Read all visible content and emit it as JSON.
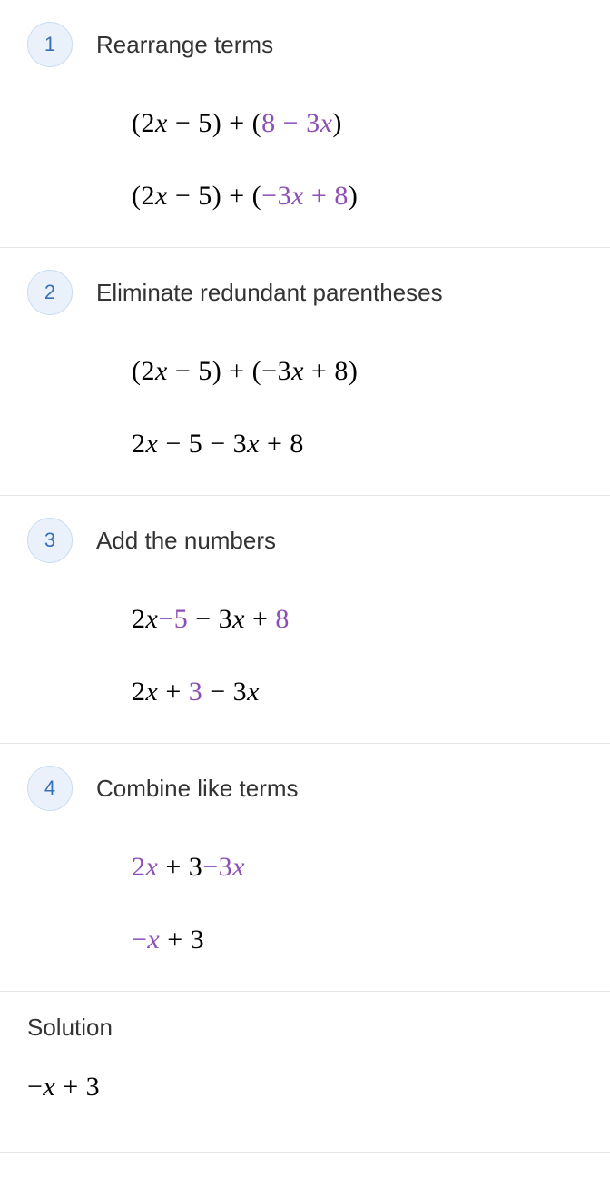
{
  "colors": {
    "badge_bg": "#eaf1fb",
    "badge_border": "#c9dcf2",
    "badge_text": "#3b6fb6",
    "highlight": "#8c4fb5",
    "text": "#000000",
    "title": "#333333",
    "divider": "#e5e5e5",
    "background": "#ffffff"
  },
  "typography": {
    "title_fontsize": 26,
    "badge_fontsize": 22,
    "math_fontsize": 30,
    "math_family": "Times New Roman",
    "ui_family": "-apple-system"
  },
  "steps": [
    {
      "num": "1",
      "title": "Rearrange terms",
      "lines": [
        [
          {
            "t": "(2",
            "i": false
          },
          {
            "t": "x",
            "i": true
          },
          {
            "t": " − 5) + (",
            "i": false
          },
          {
            "t": "8 − 3",
            "i": false,
            "hl": true
          },
          {
            "t": "x",
            "i": true,
            "hl": true
          },
          {
            "t": ")",
            "i": false
          }
        ],
        [
          {
            "t": "(2",
            "i": false
          },
          {
            "t": "x",
            "i": true
          },
          {
            "t": " − 5) + (",
            "i": false
          },
          {
            "t": "−3",
            "i": false,
            "hl": true
          },
          {
            "t": "x",
            "i": true,
            "hl": true
          },
          {
            "t": " + 8",
            "i": false,
            "hl": true
          },
          {
            "t": ")",
            "i": false
          }
        ]
      ]
    },
    {
      "num": "2",
      "title": "Eliminate redundant parentheses",
      "lines": [
        [
          {
            "t": "(2",
            "i": false
          },
          {
            "t": "x",
            "i": true
          },
          {
            "t": " − 5) + (−3",
            "i": false
          },
          {
            "t": "x",
            "i": true
          },
          {
            "t": " + 8)",
            "i": false
          }
        ],
        [
          {
            "t": "2",
            "i": false
          },
          {
            "t": "x",
            "i": true
          },
          {
            "t": " − 5 − 3",
            "i": false
          },
          {
            "t": "x",
            "i": true
          },
          {
            "t": " + 8",
            "i": false
          }
        ]
      ]
    },
    {
      "num": "3",
      "title": "Add the numbers",
      "lines": [
        [
          {
            "t": "2",
            "i": false
          },
          {
            "t": "x",
            "i": true
          },
          {
            "t": "−5",
            "i": false,
            "hl": true
          },
          {
            "t": " − 3",
            "i": false
          },
          {
            "t": "x",
            "i": true
          },
          {
            "t": " + ",
            "i": false
          },
          {
            "t": "8",
            "i": false,
            "hl": true
          }
        ],
        [
          {
            "t": "2",
            "i": false
          },
          {
            "t": "x",
            "i": true
          },
          {
            "t": " + ",
            "i": false
          },
          {
            "t": "3",
            "i": false,
            "hl": true
          },
          {
            "t": " − 3",
            "i": false
          },
          {
            "t": "x",
            "i": true
          }
        ]
      ]
    },
    {
      "num": "4",
      "title": "Combine like terms",
      "lines": [
        [
          {
            "t": "2",
            "i": false,
            "hl": true
          },
          {
            "t": "x",
            "i": true,
            "hl": true
          },
          {
            "t": " + 3",
            "i": false
          },
          {
            "t": "−3",
            "i": false,
            "hl": true
          },
          {
            "t": "x",
            "i": true,
            "hl": true
          }
        ],
        [
          {
            "t": "−",
            "i": false,
            "hl": true
          },
          {
            "t": "x",
            "i": true,
            "hl": true
          },
          {
            "t": " + 3",
            "i": false
          }
        ]
      ]
    }
  ],
  "solution": {
    "label": "Solution",
    "line": [
      {
        "t": "−",
        "i": false
      },
      {
        "t": "x",
        "i": true
      },
      {
        "t": " + 3",
        "i": false
      }
    ]
  }
}
